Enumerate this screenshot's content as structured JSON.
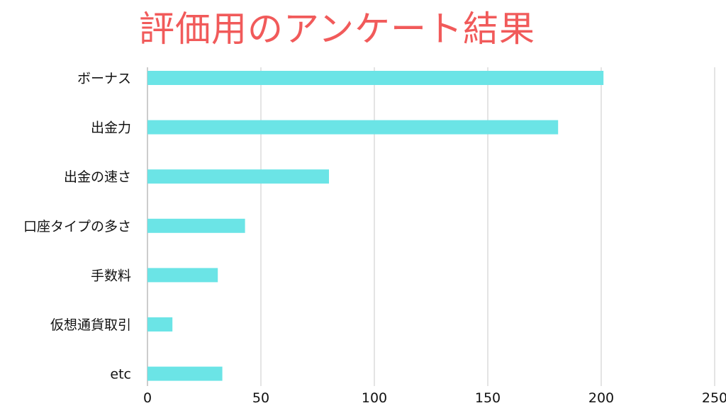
{
  "colors": {
    "title": "#f15a5a",
    "bar": "#6be4e6",
    "grid": "#c9c9c9",
    "axis": "#9a9a9a",
    "text": "#111111"
  },
  "chart_data": {
    "type": "bar",
    "orientation": "horizontal",
    "title": "評価用のアンケート結果",
    "xlabel": "",
    "ylabel": "",
    "categories": [
      "ボーナス",
      "出金力",
      "出金の速さ",
      "口座タイプの多さ",
      "手数料",
      "仮想通貨取引",
      "etc"
    ],
    "values": [
      201,
      181,
      80,
      43,
      31,
      11,
      33
    ],
    "xlim": [
      0,
      250
    ],
    "xticks": [
      0,
      50,
      100,
      150,
      200,
      250
    ],
    "grid": true,
    "legend": "none"
  }
}
